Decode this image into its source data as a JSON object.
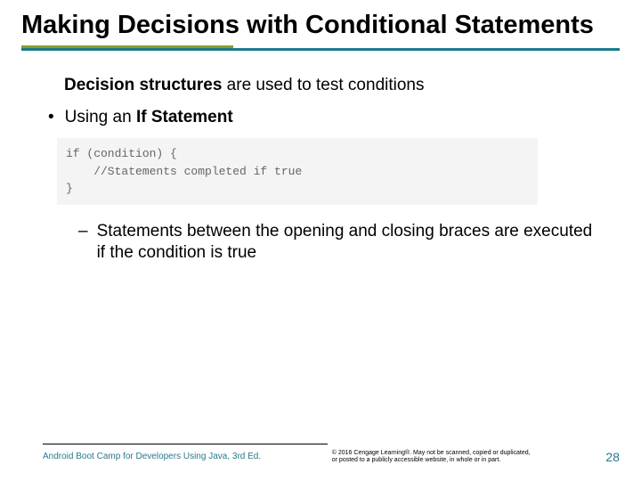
{
  "colors": {
    "olive": "#8a9b27",
    "teal": "#1a7b8c",
    "code_bg": "#f4f4f4",
    "code_text": "#666666",
    "footer_accent": "#29798a"
  },
  "title": "Making Decisions with Conditional Statements",
  "intro_bold": "Decision structures",
  "intro_rest": " are used to test conditions",
  "bullet_prefix": "Using an ",
  "bullet_bold": "If Statement",
  "code": "if (condition) {\n    //Statements completed if true\n}",
  "subbullet": "Statements between the opening and closing braces are executed if the condition is true",
  "footer": {
    "left": "Android Boot Camp for Developers Using Java, 3rd Ed.",
    "mid": "© 2016 Cengage Learning®. May not be scanned, copied or duplicated, or posted to a publicly accessible website, in whole or in part.",
    "page": "28"
  }
}
